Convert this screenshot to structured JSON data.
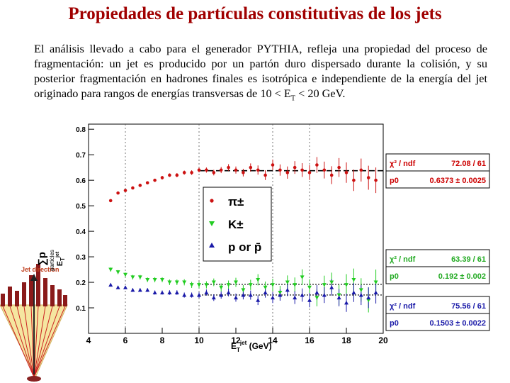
{
  "title": "Propiedades de partículas constitutivas de los jets",
  "paragraph": {
    "text_before": "El análisis llevado a cabo para el generador PYTHIA, refleja una propiedad del proceso de fragmentación: un jet es producido por un partón duro dispersado durante la colisión, y su posterior fragmentación en hadrones finales es isotrópica e independiente de la energía del jet originado para rangos de energías transversas de 10 < E",
    "subscript": "T",
    "text_after": " < 20 GeV."
  },
  "inset": {
    "label": "Jet direction"
  },
  "colors": {
    "pion": "#cc1111",
    "kaon": "#22cc22",
    "proton": "#1a1aa8",
    "fit_text": "#cc0000",
    "title": "#a00000"
  },
  "legend": {
    "entries": [
      {
        "marker": "circle",
        "label": "π±"
      },
      {
        "marker": "triangle-down",
        "label": "K±"
      },
      {
        "marker": "triangle-up",
        "label": "p or p̄"
      }
    ]
  },
  "fit_boxes": [
    {
      "label1": "χ² / ndf",
      "val1": "72.08 / 61",
      "label2": "p0",
      "val2": "0.6373 ± 0.0025"
    },
    {
      "label1": "χ² / ndf",
      "val1": "63.39 / 61",
      "label2": "p0",
      "val2": "0.192 ± 0.002"
    },
    {
      "label1": "χ² / ndf",
      "val1": "75.56 / 61",
      "label2": "p0",
      "val2": "0.1503 ± 0.0022"
    }
  ],
  "chart_data": {
    "type": "scatter",
    "title": "",
    "xlabel": "E_T^jet (GeV)",
    "ylabel": "Σ p_T^particles / E_T^jet",
    "xlim": [
      4,
      20
    ],
    "ylim": [
      0,
      0.82
    ],
    "x_ticks": [
      4,
      6,
      8,
      10,
      12,
      14,
      16,
      18,
      20
    ],
    "y_ticks": [
      0.1,
      0.2,
      0.3,
      0.4,
      0.5,
      0.6,
      0.7,
      0.8
    ],
    "dashed_gridlines_x": [
      6,
      10,
      14,
      16
    ],
    "series": [
      {
        "name": "π±",
        "marker": "circle",
        "fit_const": 0.6373,
        "fit_range": [
          10,
          20
        ],
        "x": [
          5.2,
          5.6,
          6.0,
          6.4,
          6.8,
          7.2,
          7.6,
          8.0,
          8.4,
          8.8,
          9.2,
          9.6,
          10.0,
          10.4,
          10.8,
          11.2,
          11.6,
          12.0,
          12.4,
          12.8,
          13.2,
          13.6,
          14.0,
          14.4,
          14.8,
          15.2,
          15.6,
          16.0,
          16.4,
          16.8,
          17.2,
          17.6,
          18.0,
          18.4,
          18.8,
          19.2,
          19.6
        ],
        "y": [
          0.52,
          0.55,
          0.56,
          0.57,
          0.58,
          0.59,
          0.6,
          0.61,
          0.62,
          0.62,
          0.63,
          0.63,
          0.64,
          0.64,
          0.63,
          0.64,
          0.65,
          0.64,
          0.63,
          0.65,
          0.64,
          0.62,
          0.66,
          0.64,
          0.63,
          0.65,
          0.64,
          0.63,
          0.66,
          0.64,
          0.62,
          0.65,
          0.63,
          0.6,
          0.64,
          0.61,
          0.6
        ],
        "err": [
          0.005,
          0.005,
          0.005,
          0.005,
          0.006,
          0.006,
          0.006,
          0.007,
          0.007,
          0.008,
          0.008,
          0.009,
          0.009,
          0.01,
          0.011,
          0.012,
          0.013,
          0.014,
          0.015,
          0.016,
          0.018,
          0.019,
          0.021,
          0.022,
          0.024,
          0.025,
          0.027,
          0.029,
          0.031,
          0.033,
          0.035,
          0.037,
          0.04,
          0.042,
          0.045,
          0.047,
          0.05
        ]
      },
      {
        "name": "K±",
        "marker": "triangle-down",
        "fit_const": 0.192,
        "fit_range": [
          10,
          20
        ],
        "x": [
          5.2,
          5.6,
          6.0,
          6.4,
          6.8,
          7.2,
          7.6,
          8.0,
          8.4,
          8.8,
          9.2,
          9.6,
          10.0,
          10.4,
          10.8,
          11.2,
          11.6,
          12.0,
          12.4,
          12.8,
          13.2,
          13.6,
          14.0,
          14.4,
          14.8,
          15.2,
          15.6,
          16.0,
          16.4,
          16.8,
          17.2,
          17.6,
          18.0,
          18.4,
          18.8,
          19.2,
          19.6
        ],
        "y": [
          0.25,
          0.24,
          0.23,
          0.22,
          0.22,
          0.21,
          0.21,
          0.21,
          0.2,
          0.2,
          0.2,
          0.19,
          0.19,
          0.19,
          0.2,
          0.18,
          0.19,
          0.2,
          0.17,
          0.19,
          0.21,
          0.18,
          0.19,
          0.16,
          0.2,
          0.19,
          0.22,
          0.18,
          0.14,
          0.19,
          0.2,
          0.15,
          0.19,
          0.21,
          0.17,
          0.13,
          0.2
        ],
        "err": [
          0.008,
          0.008,
          0.008,
          0.009,
          0.009,
          0.009,
          0.01,
          0.01,
          0.011,
          0.011,
          0.012,
          0.012,
          0.013,
          0.014,
          0.015,
          0.016,
          0.017,
          0.018,
          0.019,
          0.02,
          0.022,
          0.023,
          0.024,
          0.026,
          0.027,
          0.029,
          0.031,
          0.032,
          0.034,
          0.036,
          0.038,
          0.04,
          0.042,
          0.044,
          0.046,
          0.048,
          0.05
        ]
      },
      {
        "name": "p or p̄",
        "marker": "triangle-up",
        "fit_const": 0.1503,
        "fit_range": [
          10,
          20
        ],
        "x": [
          5.2,
          5.6,
          6.0,
          6.4,
          6.8,
          7.2,
          7.6,
          8.0,
          8.4,
          8.8,
          9.2,
          9.6,
          10.0,
          10.4,
          10.8,
          11.2,
          11.6,
          12.0,
          12.4,
          12.8,
          13.2,
          13.6,
          14.0,
          14.4,
          14.8,
          15.2,
          15.6,
          16.0,
          16.4,
          16.8,
          17.2,
          17.6,
          18.0,
          18.4,
          18.8,
          19.2,
          19.6
        ],
        "y": [
          0.19,
          0.18,
          0.18,
          0.17,
          0.17,
          0.17,
          0.16,
          0.16,
          0.16,
          0.16,
          0.15,
          0.15,
          0.15,
          0.16,
          0.14,
          0.15,
          0.16,
          0.14,
          0.15,
          0.15,
          0.13,
          0.16,
          0.14,
          0.15,
          0.17,
          0.14,
          0.15,
          0.13,
          0.16,
          0.15,
          0.18,
          0.14,
          0.12,
          0.16,
          0.15,
          0.14,
          0.16
        ],
        "err": [
          0.006,
          0.006,
          0.006,
          0.007,
          0.007,
          0.007,
          0.008,
          0.008,
          0.009,
          0.009,
          0.01,
          0.01,
          0.011,
          0.012,
          0.013,
          0.014,
          0.015,
          0.016,
          0.017,
          0.018,
          0.019,
          0.02,
          0.021,
          0.022,
          0.024,
          0.025,
          0.026,
          0.028,
          0.029,
          0.031,
          0.032,
          0.034,
          0.036,
          0.037,
          0.039,
          0.041,
          0.043
        ]
      }
    ]
  }
}
